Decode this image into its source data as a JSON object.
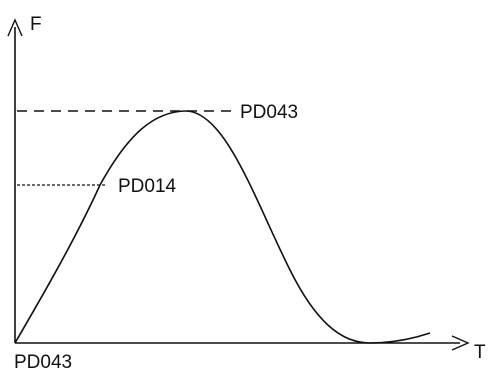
{
  "axes": {
    "y_label": "F",
    "x_label": "T"
  },
  "labels": {
    "peak": "PD043",
    "mid": "PD014",
    "origin": "PD043"
  },
  "colors": {
    "stroke": "#111111",
    "background": "#ffffff"
  },
  "icons": {
    "y_arrow": "arrow-up-icon",
    "x_arrow": "arrow-right-icon"
  }
}
